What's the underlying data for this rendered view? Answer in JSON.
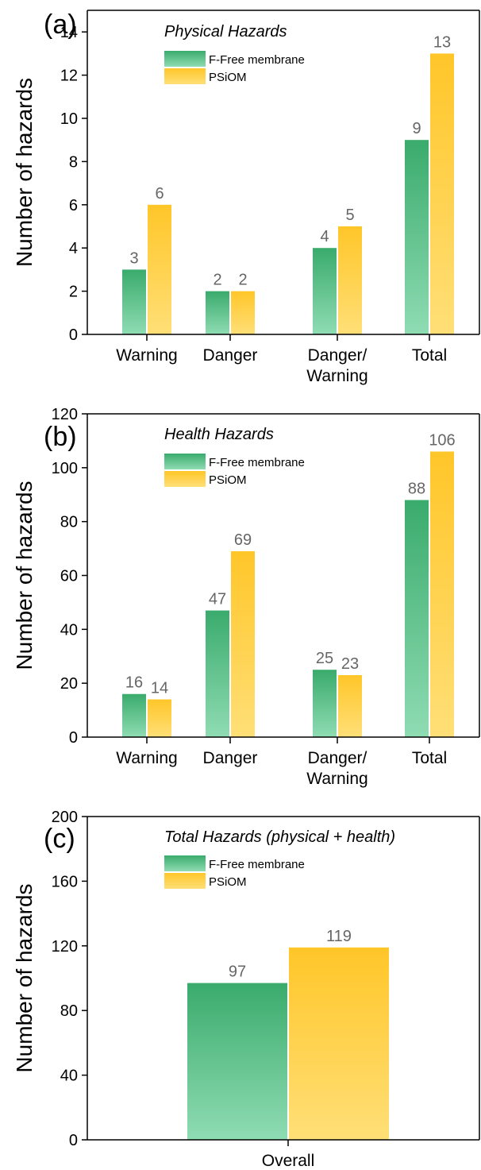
{
  "colors": {
    "green_top": "#3aab6c",
    "green_bottom": "#8fdcb3",
    "yellow_top": "#ffc629",
    "yellow_bottom": "#ffdf77",
    "value_label": "#666666",
    "axis": "#000000"
  },
  "chart_data": [
    {
      "type": "bar",
      "panel_label": "(a)",
      "title": "Physical Hazards",
      "ylabel": "Number of hazards",
      "xlabel": "",
      "ylim": [
        0,
        15
      ],
      "yticks": [
        0,
        2,
        4,
        6,
        8,
        10,
        12,
        14
      ],
      "grid": false,
      "legend": "top-left",
      "categories": [
        [
          "Warning"
        ],
        [
          "Danger"
        ],
        [
          "Danger/",
          "Warning"
        ],
        [
          "Total"
        ]
      ],
      "series": [
        {
          "name": "F-Free membrane",
          "values": [
            3,
            2,
            4,
            9
          ]
        },
        {
          "name": "PSiOM",
          "values": [
            6,
            2,
            5,
            13
          ]
        }
      ]
    },
    {
      "type": "bar",
      "panel_label": "(b)",
      "title": "Health Hazards",
      "ylabel": "Number of hazards",
      "xlabel": "",
      "ylim": [
        0,
        120
      ],
      "yticks": [
        0,
        20,
        40,
        60,
        80,
        100,
        120
      ],
      "grid": false,
      "legend": "top-left",
      "categories": [
        [
          "Warning"
        ],
        [
          "Danger"
        ],
        [
          "Danger/",
          "Warning"
        ],
        [
          "Total"
        ]
      ],
      "series": [
        {
          "name": "F-Free membrane",
          "values": [
            16,
            47,
            25,
            88
          ]
        },
        {
          "name": "PSiOM",
          "values": [
            14,
            69,
            23,
            106
          ]
        }
      ]
    },
    {
      "type": "bar",
      "panel_label": "(c)",
      "title": "Total Hazards (physical + health)",
      "ylabel": "Number of hazards",
      "xlabel": "",
      "ylim": [
        0,
        200
      ],
      "yticks": [
        0,
        40,
        80,
        120,
        160,
        200
      ],
      "grid": false,
      "legend": "top-left",
      "categories": [
        [
          "Overall"
        ]
      ],
      "series": [
        {
          "name": "F-Free membrane",
          "values": [
            97
          ]
        },
        {
          "name": "PSiOM",
          "values": [
            119
          ]
        }
      ]
    }
  ]
}
